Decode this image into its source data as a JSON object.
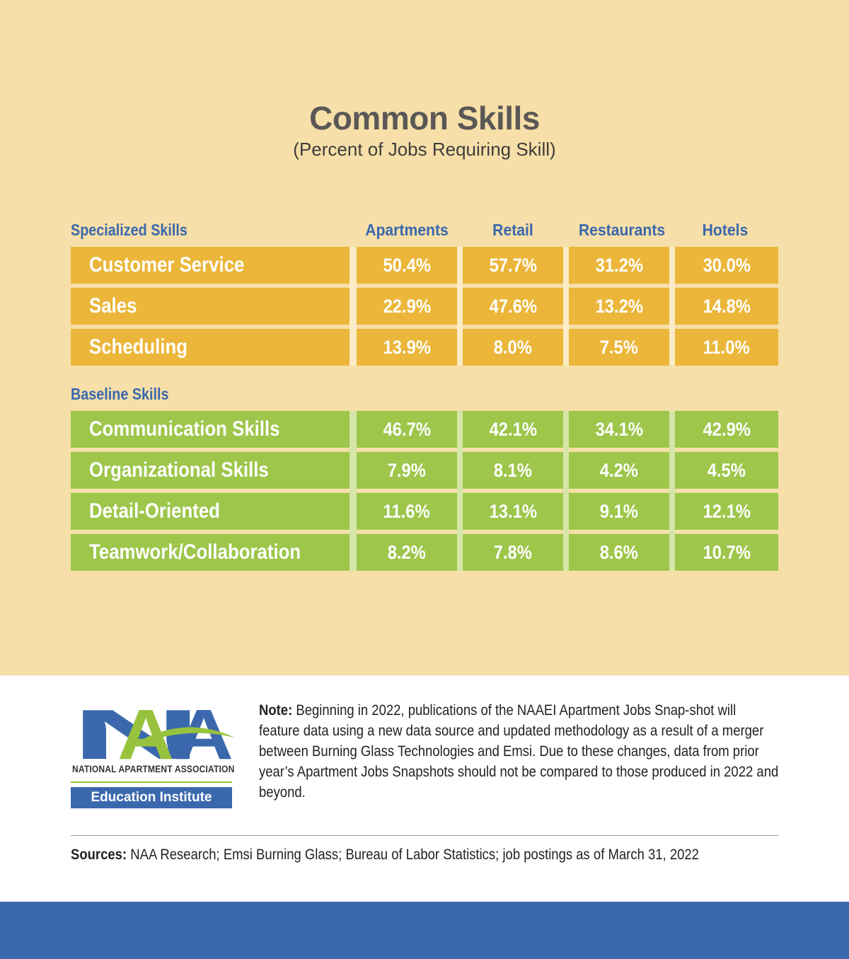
{
  "title": "Common Skills",
  "subtitle": "(Percent of Jobs Requiring Skill)",
  "colors": {
    "specialized": "#ebb639",
    "baseline": "#9dc64b",
    "header_blue": "#3b68ad",
    "background": "#f6dfa8"
  },
  "chart_data": {
    "type": "table",
    "title": "Common Skills",
    "subtitle": "(Percent of Jobs Requiring Skill)",
    "columns": [
      "Apartments",
      "Retail",
      "Restaurants",
      "Hotels"
    ],
    "groups": [
      {
        "name": "Specialized  Skills",
        "rows": [
          {
            "label": "Customer Service",
            "values": [
              "50.4%",
              "57.7%",
              "31.2%",
              "30.0%"
            ]
          },
          {
            "label": "Sales",
            "values": [
              "22.9%",
              "47.6%",
              "13.2%",
              "14.8%"
            ]
          },
          {
            "label": "Scheduling",
            "values": [
              "13.9%",
              "8.0%",
              "7.5%",
              "11.0%"
            ]
          }
        ]
      },
      {
        "name": "Baseline Skills",
        "rows": [
          {
            "label": "Communication Skills",
            "values": [
              "46.7%",
              "42.1%",
              "34.1%",
              "42.9%"
            ]
          },
          {
            "label": "Organizational Skills",
            "values": [
              "7.9%",
              "8.1%",
              "4.2%",
              "4.5%"
            ]
          },
          {
            "label": "Detail-Oriented",
            "values": [
              "11.6%",
              "13.1%",
              "9.1%",
              "12.1%"
            ]
          },
          {
            "label": "Teamwork/Collaboration",
            "values": [
              "8.2%",
              "7.8%",
              "8.6%",
              "10.7%"
            ]
          }
        ]
      }
    ]
  },
  "logo": {
    "letters": "NAA",
    "name": "NATIONAL APARTMENT ASSOCIATION",
    "subname": "Education Institute"
  },
  "note": {
    "label": "Note:",
    "text": " Beginning in 2022, publications of the NAAEI Apartment Jobs Snap-shot will feature data using a new data source and updated methodology as a result of a merger between Burning Glass Technologies and Emsi. Due to these changes, data from prior year’s Apartment Jobs Snapshots should not be compared to those produced in 2022 and beyond."
  },
  "sources": {
    "label": "Sources:",
    "text": "  NAA Research; Emsi Burning Glass; Bureau of Labor Statistics; job postings as of March 31, 2022"
  }
}
